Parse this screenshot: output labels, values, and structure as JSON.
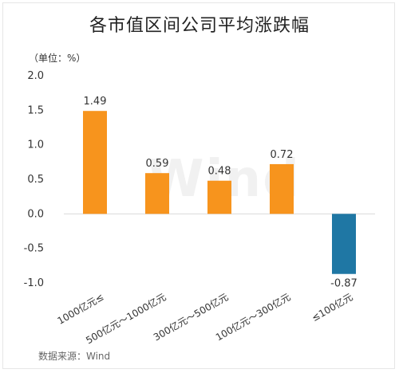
{
  "title": "各市值区间公司平均涨跌幅",
  "unit_label": "（单位：%）",
  "source_label": "数据来源：Wind",
  "watermark": "Wind",
  "chart_data": {
    "type": "bar",
    "categories": [
      "1000亿元≤",
      "500亿元～1000亿元",
      "300亿元～500亿元",
      "100亿元～300亿元",
      "≤100亿元"
    ],
    "values": [
      1.49,
      0.59,
      0.48,
      0.72,
      -0.87
    ],
    "value_labels": [
      "1.49",
      "0.59",
      "0.48",
      "0.72",
      "-0.87"
    ],
    "colors": [
      "#f7941d",
      "#f7941d",
      "#f7941d",
      "#f7941d",
      "#1f77a4"
    ],
    "ylim": [
      -1.0,
      2.0
    ],
    "yticks": [
      2.0,
      1.5,
      1.0,
      0.5,
      0.0,
      -0.5,
      -1.0
    ],
    "ytick_labels": [
      "2.0",
      "1.5",
      "1.0",
      "0.5",
      "0.0",
      "-0.5",
      "-1.0"
    ],
    "grid": false,
    "xlabel": "",
    "ylabel": ""
  }
}
